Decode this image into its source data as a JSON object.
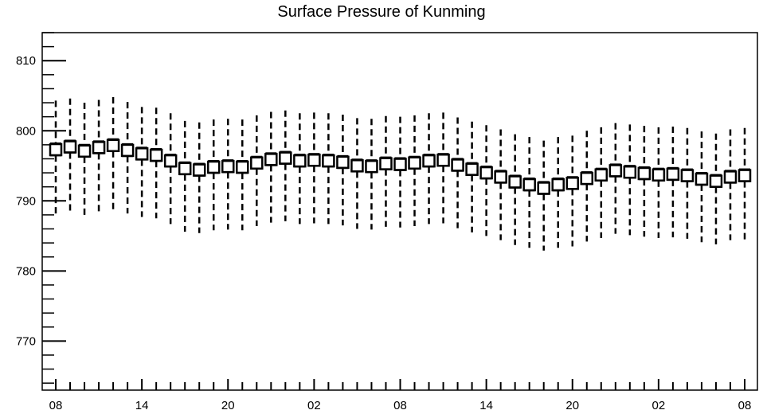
{
  "chart_data": {
    "type": "boxplot",
    "title": "Surface Pressure of Kunming",
    "xlabel": "",
    "ylabel": "",
    "ylim": [
      763,
      814
    ],
    "y_ticks": [
      770,
      780,
      790,
      800,
      810
    ],
    "x_tick_labels": [
      "08",
      "14",
      "20",
      "02",
      "08",
      "14",
      "20",
      "02",
      "08"
    ],
    "x_tick_every": 6,
    "grid": false,
    "colors": {
      "box_fill": "#ffffff",
      "stroke": "#000000"
    },
    "series": [
      {
        "x": [
          0,
          1,
          2,
          3,
          4,
          5,
          6,
          7,
          8,
          9,
          10,
          11,
          12,
          13,
          14,
          15,
          16,
          17,
          18,
          19,
          20,
          21,
          22,
          23,
          24,
          25,
          26,
          27,
          28,
          29,
          30,
          31,
          32,
          33,
          34,
          35,
          36,
          37,
          38,
          39,
          40,
          41,
          42,
          43,
          44,
          45,
          46,
          47,
          48
        ],
        "median": [
          797.3,
          797.7,
          797.1,
          797.6,
          797.9,
          797.2,
          796.7,
          796.5,
          795.7,
          794.6,
          794.4,
          794.8,
          794.9,
          794.8,
          795.4,
          795.9,
          796.1,
          795.7,
          795.8,
          795.7,
          795.5,
          795.0,
          794.9,
          795.3,
          795.2,
          795.4,
          795.7,
          795.8,
          795.1,
          794.5,
          794.0,
          793.4,
          792.7,
          792.3,
          791.8,
          792.3,
          792.5,
          793.2,
          793.7,
          794.3,
          794.1,
          793.9,
          793.7,
          793.8,
          793.6,
          793.1,
          792.8,
          793.4,
          793.6
        ],
        "q1": [
          796.5,
          796.9,
          796.3,
          796.8,
          797.1,
          796.4,
          795.9,
          795.7,
          794.9,
          793.8,
          793.6,
          794.0,
          794.1,
          794.0,
          794.6,
          795.1,
          795.3,
          794.9,
          795.0,
          794.9,
          794.7,
          794.2,
          794.1,
          794.5,
          794.4,
          794.6,
          794.9,
          795.0,
          794.3,
          793.7,
          793.2,
          792.6,
          791.9,
          791.5,
          791.0,
          791.5,
          791.7,
          792.4,
          792.9,
          793.5,
          793.3,
          793.1,
          792.9,
          793.0,
          792.8,
          792.3,
          792.0,
          792.6,
          792.8
        ],
        "q3": [
          798.1,
          798.5,
          797.9,
          798.4,
          798.7,
          798.0,
          797.5,
          797.3,
          796.5,
          795.4,
          795.2,
          795.6,
          795.7,
          795.6,
          796.2,
          796.7,
          796.9,
          796.5,
          796.6,
          796.5,
          796.3,
          795.8,
          795.7,
          796.1,
          796.0,
          796.2,
          796.5,
          796.6,
          795.9,
          795.3,
          794.8,
          794.2,
          793.5,
          793.1,
          792.6,
          793.1,
          793.3,
          794.0,
          794.5,
          795.1,
          794.9,
          794.7,
          794.5,
          794.6,
          794.4,
          793.9,
          793.6,
          794.2,
          794.4
        ],
        "whisker_low": [
          788.0,
          788.5,
          788.0,
          788.3,
          788.8,
          788.2,
          787.7,
          787.5,
          786.7,
          785.6,
          785.4,
          785.8,
          785.9,
          785.8,
          786.4,
          786.9,
          787.1,
          786.7,
          786.8,
          786.7,
          786.5,
          786.0,
          785.9,
          786.3,
          786.2,
          786.4,
          786.7,
          786.8,
          786.1,
          785.5,
          785.0,
          784.4,
          783.7,
          783.3,
          782.9,
          783.3,
          783.5,
          784.2,
          784.7,
          785.3,
          785.1,
          784.9,
          784.7,
          784.8,
          784.6,
          784.1,
          783.8,
          784.4,
          784.4
        ],
        "whisker_high": [
          804.3,
          804.6,
          804.0,
          804.4,
          804.8,
          804.1,
          803.4,
          803.3,
          802.5,
          801.4,
          801.2,
          801.6,
          801.7,
          801.6,
          802.2,
          802.7,
          802.9,
          802.5,
          802.6,
          802.5,
          802.3,
          801.8,
          801.7,
          802.1,
          802.0,
          802.2,
          802.5,
          802.6,
          801.9,
          801.3,
          800.8,
          800.2,
          799.5,
          799.1,
          798.6,
          799.1,
          799.3,
          800.0,
          800.5,
          801.1,
          800.9,
          800.7,
          800.5,
          800.6,
          800.4,
          799.9,
          799.6,
          800.2,
          800.4
        ]
      }
    ]
  }
}
